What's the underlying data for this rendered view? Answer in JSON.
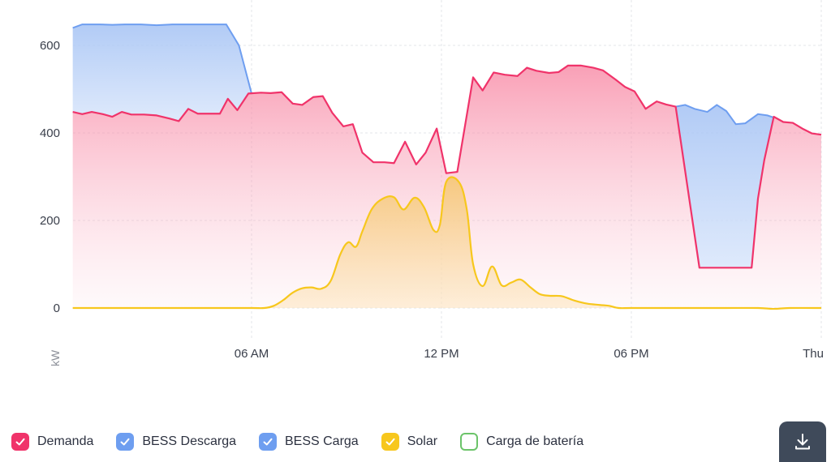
{
  "chart_data": {
    "type": "area",
    "ylabel": "kW",
    "ylim": [
      -35,
      650
    ],
    "yticks": [
      0,
      200,
      400,
      600
    ],
    "xticks": [
      {
        "hour": 6,
        "label": "06 AM"
      },
      {
        "hour": 12,
        "label": "12 PM"
      },
      {
        "hour": 18,
        "label": "06 PM"
      },
      {
        "hour": 24,
        "label": "Thu"
      }
    ],
    "xlim": [
      0.35,
      24
    ],
    "grid": true,
    "legend_position": "bottom-left",
    "series": [
      {
        "name": "BESS Descarga",
        "color": "#6e9ef0",
        "style": "area",
        "points": [
          [
            0.35,
            640
          ],
          [
            0.65,
            648
          ],
          [
            1.2,
            648
          ],
          [
            1.6,
            647
          ],
          [
            2.0,
            648
          ],
          [
            2.5,
            648
          ],
          [
            3.0,
            646
          ],
          [
            3.5,
            648
          ],
          [
            4.0,
            648
          ],
          [
            4.5,
            648
          ],
          [
            5.0,
            648
          ],
          [
            5.2,
            648
          ],
          [
            5.6,
            600
          ],
          [
            6.0,
            490
          ],
          [
            19.4,
            460
          ],
          [
            19.7,
            464
          ],
          [
            20.0,
            455
          ],
          [
            20.4,
            448
          ],
          [
            20.7,
            464
          ],
          [
            21.0,
            450
          ],
          [
            21.3,
            420
          ],
          [
            21.6,
            422
          ],
          [
            22.0,
            443
          ],
          [
            22.3,
            440
          ],
          [
            22.5,
            435
          ]
        ]
      },
      {
        "name": "Demanda",
        "color": "#f0336a",
        "style": "area",
        "points": [
          [
            0.35,
            448
          ],
          [
            0.65,
            443
          ],
          [
            0.95,
            448
          ],
          [
            1.3,
            443
          ],
          [
            1.6,
            437
          ],
          [
            1.9,
            448
          ],
          [
            2.2,
            442
          ],
          [
            2.6,
            442
          ],
          [
            3.0,
            440
          ],
          [
            3.4,
            433
          ],
          [
            3.7,
            427
          ],
          [
            4.0,
            455
          ],
          [
            4.3,
            444
          ],
          [
            4.7,
            444
          ],
          [
            5.0,
            444
          ],
          [
            5.25,
            478
          ],
          [
            5.55,
            452
          ],
          [
            5.9,
            490
          ],
          [
            6.3,
            492
          ],
          [
            6.6,
            491
          ],
          [
            6.95,
            493
          ],
          [
            7.3,
            467
          ],
          [
            7.6,
            464
          ],
          [
            7.95,
            482
          ],
          [
            8.25,
            484
          ],
          [
            8.55,
            446
          ],
          [
            8.9,
            415
          ],
          [
            9.2,
            420
          ],
          [
            9.5,
            355
          ],
          [
            9.85,
            333
          ],
          [
            10.2,
            333
          ],
          [
            10.5,
            331
          ],
          [
            10.85,
            380
          ],
          [
            11.2,
            328
          ],
          [
            11.5,
            355
          ],
          [
            11.85,
            410
          ],
          [
            12.15,
            308
          ],
          [
            12.5,
            311
          ],
          [
            13.0,
            527
          ],
          [
            13.3,
            497
          ],
          [
            13.65,
            538
          ],
          [
            14.0,
            533
          ],
          [
            14.4,
            530
          ],
          [
            14.7,
            549
          ],
          [
            15.0,
            542
          ],
          [
            15.4,
            537
          ],
          [
            15.7,
            539
          ],
          [
            16.0,
            554
          ],
          [
            16.4,
            554
          ],
          [
            16.8,
            549
          ],
          [
            17.1,
            543
          ],
          [
            17.5,
            522
          ],
          [
            17.8,
            505
          ],
          [
            18.1,
            495
          ],
          [
            18.45,
            455
          ],
          [
            18.8,
            472
          ],
          [
            19.1,
            465
          ],
          [
            19.4,
            460
          ],
          [
            20.15,
            92
          ],
          [
            20.5,
            92
          ],
          [
            21.0,
            92
          ],
          [
            21.5,
            92
          ],
          [
            21.8,
            92
          ],
          [
            22.0,
            250
          ],
          [
            22.2,
            338
          ],
          [
            22.5,
            437
          ],
          [
            22.8,
            425
          ],
          [
            23.1,
            423
          ],
          [
            23.4,
            410
          ],
          [
            23.7,
            399
          ],
          [
            24.0,
            396
          ]
        ]
      },
      {
        "name": "Solar",
        "color": "#f7c71d",
        "style": "area",
        "points": [
          [
            0.35,
            0
          ],
          [
            1.0,
            0
          ],
          [
            2.0,
            0
          ],
          [
            3.0,
            0
          ],
          [
            4.0,
            0
          ],
          [
            5.0,
            0
          ],
          [
            6.0,
            0
          ],
          [
            6.4,
            0
          ],
          [
            6.7,
            5
          ],
          [
            7.0,
            18
          ],
          [
            7.3,
            35
          ],
          [
            7.6,
            45
          ],
          [
            7.9,
            47
          ],
          [
            8.2,
            44
          ],
          [
            8.5,
            62
          ],
          [
            8.8,
            122
          ],
          [
            9.05,
            150
          ],
          [
            9.3,
            140
          ],
          [
            9.5,
            175
          ],
          [
            9.8,
            226
          ],
          [
            10.15,
            250
          ],
          [
            10.5,
            253
          ],
          [
            10.8,
            225
          ],
          [
            11.15,
            252
          ],
          [
            11.45,
            230
          ],
          [
            11.75,
            178
          ],
          [
            11.95,
            190
          ],
          [
            12.15,
            288
          ],
          [
            12.55,
            288
          ],
          [
            12.8,
            225
          ],
          [
            13.0,
            100
          ],
          [
            13.3,
            50
          ],
          [
            13.6,
            95
          ],
          [
            13.9,
            52
          ],
          [
            14.2,
            58
          ],
          [
            14.5,
            65
          ],
          [
            14.8,
            48
          ],
          [
            15.1,
            32
          ],
          [
            15.4,
            28
          ],
          [
            15.8,
            27
          ],
          [
            16.2,
            17
          ],
          [
            16.6,
            10
          ],
          [
            17.0,
            7
          ],
          [
            17.3,
            5
          ],
          [
            17.6,
            0
          ],
          [
            18.0,
            0
          ],
          [
            19.0,
            0
          ],
          [
            20.0,
            0
          ],
          [
            21.0,
            0
          ],
          [
            22.0,
            0
          ],
          [
            22.5,
            -2
          ],
          [
            23.0,
            0
          ],
          [
            24.0,
            0
          ]
        ]
      }
    ]
  },
  "legend": [
    {
      "label": "Demanda",
      "color": "#f0336a",
      "checked": true
    },
    {
      "label": "BESS Descarga",
      "color": "#6e9ef0",
      "checked": true
    },
    {
      "label": "BESS Carga",
      "color": "#6e9ef0",
      "checked": true
    },
    {
      "label": "Solar",
      "color": "#f7c71d",
      "checked": true
    },
    {
      "label": "Carga de batería",
      "color": "#6cc46a",
      "checked": false
    }
  ],
  "icons": {
    "download": "download-icon",
    "checkmark": "check-icon"
  }
}
